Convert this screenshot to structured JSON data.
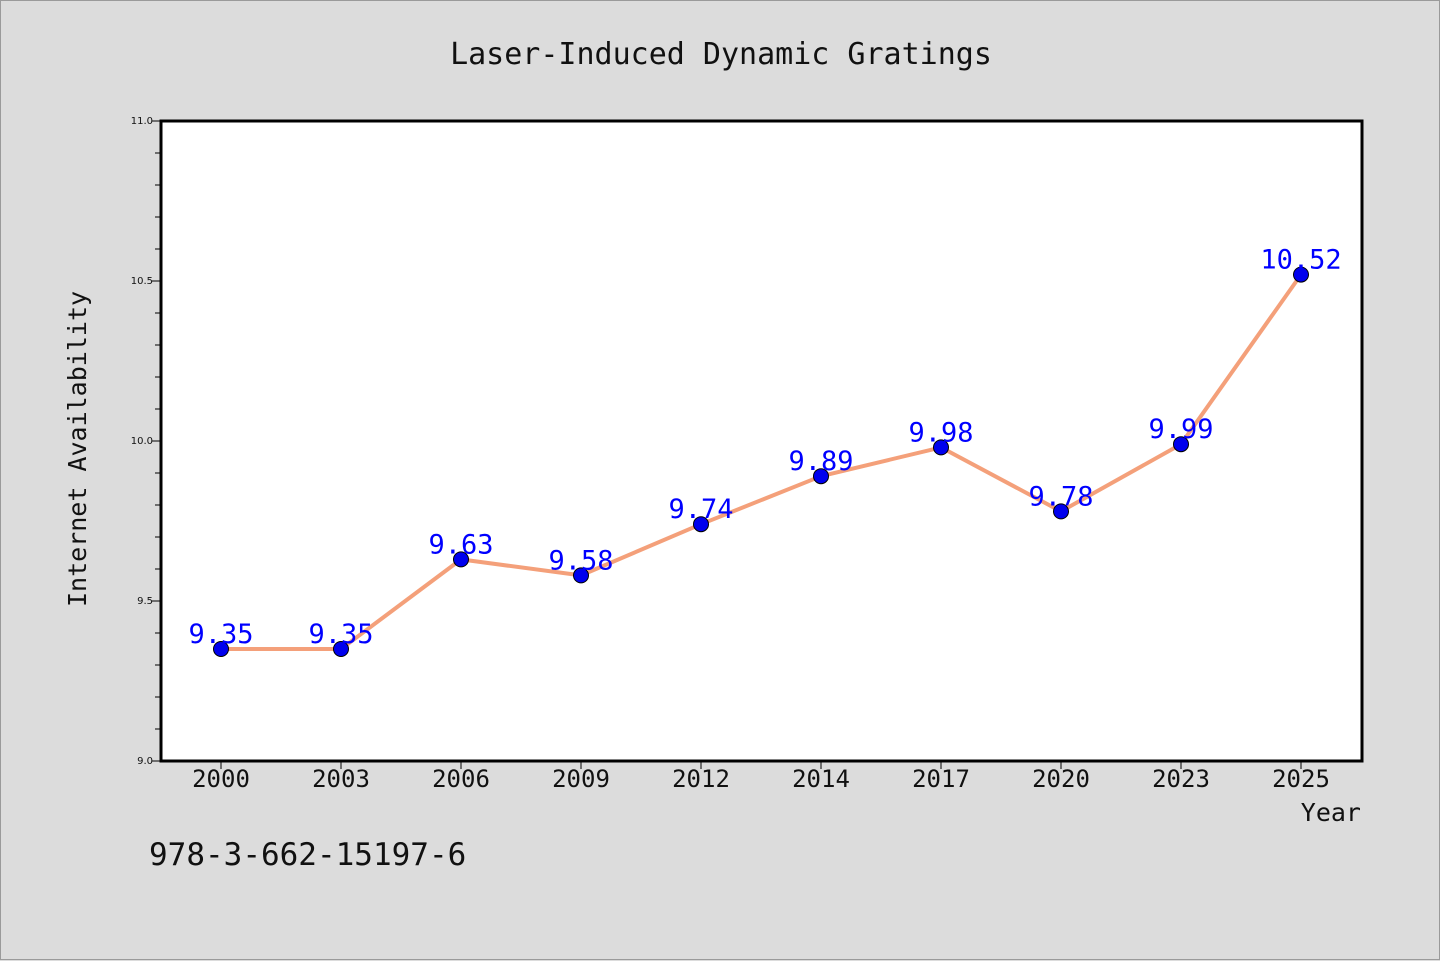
{
  "chart_data": {
    "type": "line",
    "title": "Laser-Induced Dynamic Gratings",
    "xlabel": "Year",
    "ylabel": "Internet Availability",
    "categories": [
      "2000",
      "2003",
      "2006",
      "2009",
      "2012",
      "2014",
      "2017",
      "2020",
      "2023",
      "2025"
    ],
    "series": [
      {
        "values": [
          9.35,
          9.35,
          9.63,
          9.58,
          9.74,
          9.89,
          9.98,
          9.78,
          9.99,
          10.52
        ],
        "labels": [
          "9.35",
          "9.35",
          "9.63",
          "9.58",
          "9.74",
          "9.89",
          "9.98",
          "9.78",
          "9.99",
          "10.52"
        ],
        "line_color": "#f4a07a",
        "marker_color": "#0000ee",
        "label_color": "#0000ff"
      }
    ],
    "ylim": [
      9.0,
      11.0
    ],
    "y_ticks": [
      "9.0",
      "9.5",
      "10.0",
      "10.5",
      "11.0"
    ],
    "grid": false,
    "legend": "none",
    "plot_background": "#ffffff",
    "figure_background": "#dcdcdc"
  },
  "footer_text": "978-3-662-15197-6"
}
